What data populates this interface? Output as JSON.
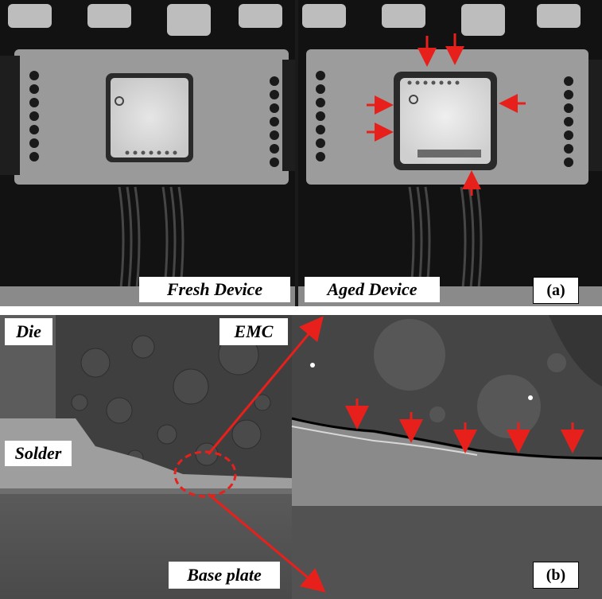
{
  "panel_a": {
    "label_fresh": "Fresh Device",
    "label_aged": "Aged Device",
    "tag": "(a)"
  },
  "panel_b": {
    "label_die": "Die",
    "label_emc": "EMC",
    "label_solder": "Solder",
    "label_base_plate": "Base plate",
    "tag": "(b)"
  },
  "colors": {
    "arrow": "#e8201c",
    "label_bg": "#ffffff"
  }
}
